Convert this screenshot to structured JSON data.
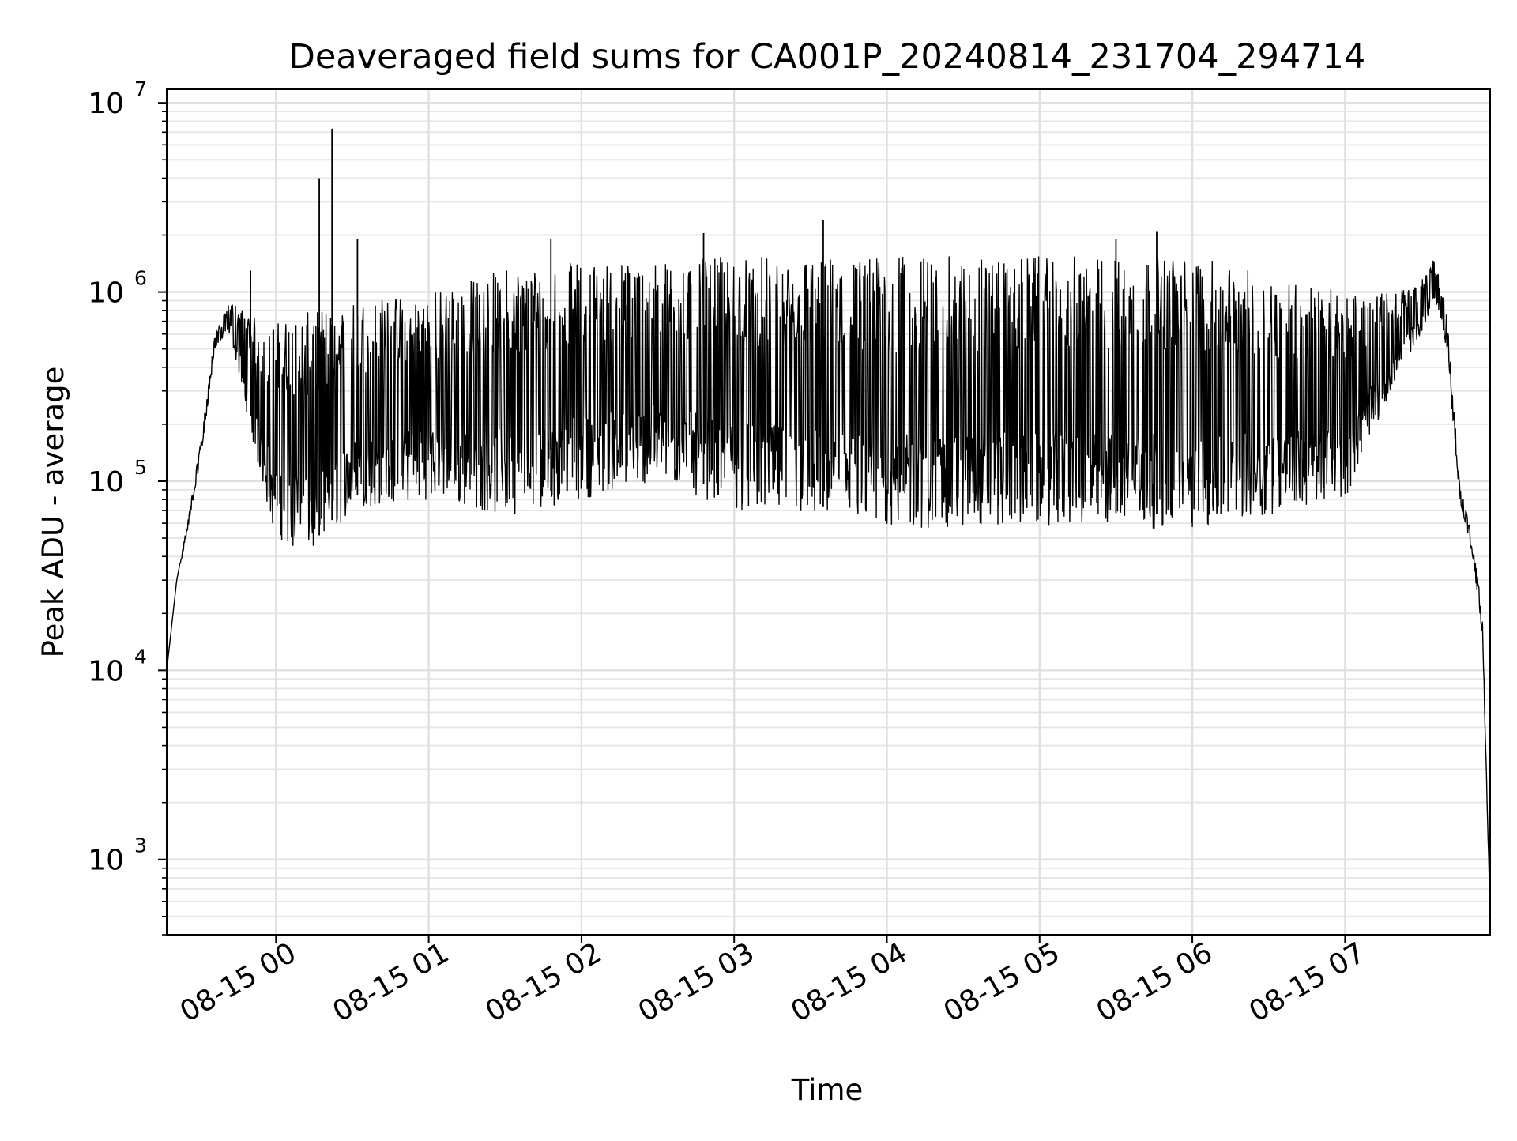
{
  "chart_data": {
    "type": "line",
    "title": "Deaveraged field sums for CA001P_20240814_231704_294714",
    "xlabel": "Time",
    "ylabel": "Peak ADU - average",
    "yscale": "log",
    "xlim": [
      "2024-08-14 23:17:04",
      "2024-08-15 07:57:00"
    ],
    "ylim": [
      400,
      11800000
    ],
    "x_ticks": [
      {
        "value": "2024-08-15 00:00",
        "label": "08-15 00"
      },
      {
        "value": "2024-08-15 01:00",
        "label": "08-15 01"
      },
      {
        "value": "2024-08-15 02:00",
        "label": "08-15 02"
      },
      {
        "value": "2024-08-15 03:00",
        "label": "08-15 03"
      },
      {
        "value": "2024-08-15 04:00",
        "label": "08-15 04"
      },
      {
        "value": "2024-08-15 05:00",
        "label": "08-15 05"
      },
      {
        "value": "2024-08-15 06:00",
        "label": "08-15 06"
      },
      {
        "value": "2024-08-15 07:00",
        "label": "08-15 07"
      }
    ],
    "y_ticks": [
      {
        "value": 1000,
        "base": "10",
        "exp": "3"
      },
      {
        "value": 10000,
        "base": "10",
        "exp": "4"
      },
      {
        "value": 100000,
        "base": "10",
        "exp": "5"
      },
      {
        "value": 1000000,
        "base": "10",
        "exp": "6"
      },
      {
        "value": 10000000,
        "base": "10",
        "exp": "7"
      }
    ],
    "grid": {
      "major": true,
      "minor_y": true
    },
    "series": [
      {
        "color": "#000000",
        "upper_envelope": [
          {
            "t": "2024-08-14 23:17:04",
            "v": 10000
          },
          {
            "t": "2024-08-14 23:21",
            "v": 30000
          },
          {
            "t": "2024-08-14 23:26",
            "v": 70000
          },
          {
            "t": "2024-08-14 23:31",
            "v": 180000
          },
          {
            "t": "2024-08-14 23:36",
            "v": 600000
          },
          {
            "t": "2024-08-14 23:42",
            "v": 900000
          },
          {
            "t": "2024-08-14 23:48",
            "v": 800000
          },
          {
            "t": "2024-08-14 23:54",
            "v": 700000
          },
          {
            "t": "2024-08-15 00:00",
            "v": 700000
          },
          {
            "t": "2024-08-15 00:15",
            "v": 800000
          },
          {
            "t": "2024-08-15 00:30",
            "v": 900000
          },
          {
            "t": "2024-08-15 01:00",
            "v": 1000000
          },
          {
            "t": "2024-08-15 01:30",
            "v": 1350000
          },
          {
            "t": "2024-08-15 02:00",
            "v": 1450000
          },
          {
            "t": "2024-08-15 02:30",
            "v": 1450000
          },
          {
            "t": "2024-08-15 03:00",
            "v": 1550000
          },
          {
            "t": "2024-08-15 04:00",
            "v": 1550000
          },
          {
            "t": "2024-08-15 05:00",
            "v": 1550000
          },
          {
            "t": "2024-08-15 06:00",
            "v": 1550000
          },
          {
            "t": "2024-08-15 07:00",
            "v": 1000000
          },
          {
            "t": "2024-08-15 07:20",
            "v": 1000000
          },
          {
            "t": "2024-08-15 07:30",
            "v": 1150000
          },
          {
            "t": "2024-08-15 07:35",
            "v": 1600000
          },
          {
            "t": "2024-08-15 07:40",
            "v": 800000
          },
          {
            "t": "2024-08-15 07:45",
            "v": 100000
          },
          {
            "t": "2024-08-15 07:50",
            "v": 50000
          },
          {
            "t": "2024-08-15 07:54",
            "v": 20000
          },
          {
            "t": "2024-08-15 07:57",
            "v": 500
          }
        ],
        "lower_envelope": [
          {
            "t": "2024-08-14 23:17:04",
            "v": 10000
          },
          {
            "t": "2024-08-14 23:21",
            "v": 30000
          },
          {
            "t": "2024-08-14 23:26",
            "v": 60000
          },
          {
            "t": "2024-08-14 23:31",
            "v": 150000
          },
          {
            "t": "2024-08-14 23:36",
            "v": 500000
          },
          {
            "t": "2024-08-14 23:42",
            "v": 600000
          },
          {
            "t": "2024-08-14 23:48",
            "v": 250000
          },
          {
            "t": "2024-08-14 23:54",
            "v": 100000
          },
          {
            "t": "2024-08-15 00:00",
            "v": 50000
          },
          {
            "t": "2024-08-15 00:15",
            "v": 40000
          },
          {
            "t": "2024-08-15 00:30",
            "v": 70000
          },
          {
            "t": "2024-08-15 01:00",
            "v": 80000
          },
          {
            "t": "2024-08-15 01:30",
            "v": 65000
          },
          {
            "t": "2024-08-15 02:00",
            "v": 80000
          },
          {
            "t": "2024-08-15 02:30",
            "v": 100000
          },
          {
            "t": "2024-08-15 03:00",
            "v": 70000
          },
          {
            "t": "2024-08-15 04:00",
            "v": 55000
          },
          {
            "t": "2024-08-15 05:00",
            "v": 58000
          },
          {
            "t": "2024-08-15 06:00",
            "v": 55000
          },
          {
            "t": "2024-08-15 07:00",
            "v": 80000
          },
          {
            "t": "2024-08-15 07:20",
            "v": 350000
          },
          {
            "t": "2024-08-15 07:30",
            "v": 600000
          },
          {
            "t": "2024-08-15 07:35",
            "v": 900000
          },
          {
            "t": "2024-08-15 07:40",
            "v": 500000
          },
          {
            "t": "2024-08-15 07:45",
            "v": 80000
          },
          {
            "t": "2024-08-15 07:50",
            "v": 40000
          },
          {
            "t": "2024-08-15 07:54",
            "v": 15000
          },
          {
            "t": "2024-08-15 07:57",
            "v": 500
          }
        ],
        "spikes": [
          {
            "t": "2024-08-14 23:32",
            "v": 180000
          },
          {
            "t": "2024-08-14 23:50",
            "v": 1300000
          },
          {
            "t": "2024-08-15 00:17",
            "v": 4000000
          },
          {
            "t": "2024-08-15 00:22",
            "v": 7300000
          },
          {
            "t": "2024-08-15 00:32",
            "v": 1900000
          },
          {
            "t": "2024-08-15 01:48",
            "v": 1900000
          },
          {
            "t": "2024-08-15 02:48",
            "v": 2050000
          },
          {
            "t": "2024-08-15 03:35",
            "v": 2400000
          },
          {
            "t": "2024-08-15 05:30",
            "v": 1900000
          },
          {
            "t": "2024-08-15 05:46",
            "v": 2100000
          }
        ]
      }
    ]
  }
}
